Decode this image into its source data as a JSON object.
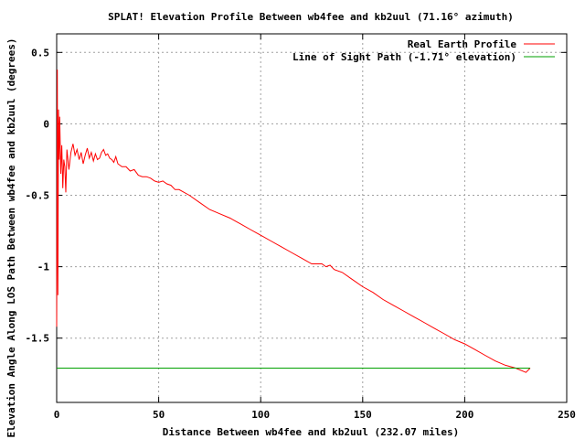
{
  "chart_data": {
    "type": "line",
    "title": "SPLAT! Elevation Profile Between wb4fee and kb2uul (71.16° azimuth)",
    "xlabel": "Distance Between wb4fee and kb2uul (232.07 miles)",
    "ylabel": "Elevation Angle Along LOS Path Between wb4fee and kb2uul (degrees)",
    "xlim": [
      0,
      250
    ],
    "ylim": [
      -1.95,
      0.63
    ],
    "x_ticks": [
      0,
      50,
      100,
      150,
      200,
      250
    ],
    "x_tick_labels": [
      "0",
      "50",
      "100",
      "150",
      "200",
      "250"
    ],
    "y_ticks": [
      0.5,
      0,
      -0.5,
      -1,
      -1.5
    ],
    "y_tick_labels": [
      "0.5",
      "0",
      "-0.5",
      "-1",
      "-1.5"
    ],
    "grid": true,
    "legend_position": "top-right",
    "series": [
      {
        "name": "Real Earth Profile",
        "color": "#ff0000",
        "x": [
          0,
          0.3,
          0.6,
          0.9,
          1.2,
          1.5,
          2.0,
          2.5,
          3.0,
          3.5,
          4.0,
          4.5,
          5.0,
          6.0,
          7.0,
          8.0,
          9.0,
          10.0,
          11.0,
          12.0,
          13.0,
          14.0,
          15.0,
          16.0,
          17.0,
          18.0,
          19.0,
          20.0,
          21.0,
          22.0,
          23.0,
          24.0,
          25.0,
          26.0,
          27.0,
          28.0,
          29.0,
          30.0,
          32.0,
          34.0,
          36.0,
          38.0,
          40.0,
          42.0,
          44.0,
          46.0,
          48.0,
          50.0,
          52.0,
          54.0,
          56.0,
          58.0,
          60.0,
          65.0,
          70.0,
          75.0,
          80.0,
          85.0,
          90.0,
          95.0,
          100.0,
          105.0,
          110.0,
          115.0,
          120.0,
          125.0,
          130.0,
          132.0,
          134.0,
          136.0,
          140.0,
          145.0,
          150.0,
          155.0,
          160.0,
          165.0,
          170.0,
          175.0,
          180.0,
          185.0,
          190.0,
          195.0,
          200.0,
          205.0,
          210.0,
          215.0,
          220.0,
          225.0,
          230.0,
          232.07
        ],
        "y": [
          -1.42,
          0.38,
          -1.2,
          0.1,
          -0.25,
          0.05,
          -0.35,
          -0.15,
          -0.45,
          -0.25,
          -0.3,
          -0.48,
          -0.18,
          -0.32,
          -0.2,
          -0.14,
          -0.22,
          -0.18,
          -0.25,
          -0.2,
          -0.28,
          -0.22,
          -0.17,
          -0.24,
          -0.2,
          -0.26,
          -0.21,
          -0.25,
          -0.24,
          -0.2,
          -0.18,
          -0.22,
          -0.21,
          -0.24,
          -0.25,
          -0.27,
          -0.23,
          -0.28,
          -0.3,
          -0.3,
          -0.33,
          -0.32,
          -0.36,
          -0.37,
          -0.37,
          -0.38,
          -0.4,
          -0.41,
          -0.4,
          -0.42,
          -0.43,
          -0.46,
          -0.46,
          -0.5,
          -0.55,
          -0.6,
          -0.63,
          -0.66,
          -0.7,
          -0.74,
          -0.78,
          -0.82,
          -0.86,
          -0.9,
          -0.94,
          -0.98,
          -0.98,
          -1.0,
          -0.99,
          -1.02,
          -1.04,
          -1.09,
          -1.14,
          -1.18,
          -1.23,
          -1.27,
          -1.31,
          -1.35,
          -1.39,
          -1.43,
          -1.47,
          -1.51,
          -1.54,
          -1.58,
          -1.62,
          -1.66,
          -1.69,
          -1.71,
          -1.74,
          -1.71
        ]
      },
      {
        "name": "Line of Sight Path (-1.71° elevation)",
        "color": "#00a000",
        "x": [
          0,
          232.07
        ],
        "y": [
          -1.71,
          -1.71
        ]
      }
    ]
  }
}
